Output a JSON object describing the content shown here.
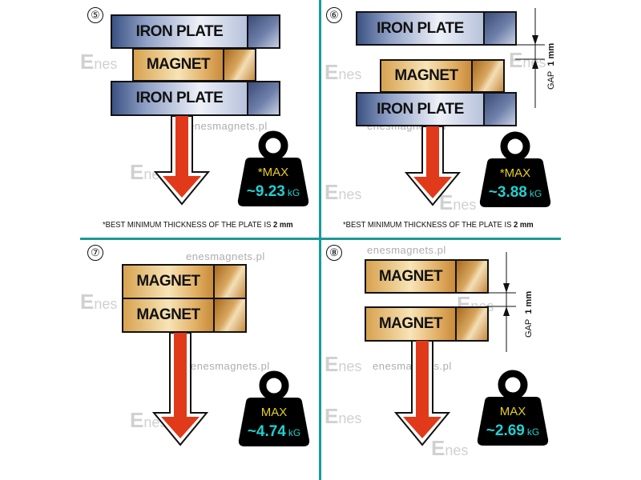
{
  "colors": {
    "divider": "#1a9a95",
    "arrow": "#e03a1a",
    "weight_body": "#000000",
    "max_label": "#e8d020",
    "value": "#20d0d0"
  },
  "watermarks": {
    "site": "enesmagnets.pl",
    "logo_letter": "E",
    "logo_rest": "nes"
  },
  "panels": [
    {
      "number": "⑤",
      "top_plate": "IRON PLATE",
      "magnet": "MAGNET",
      "bottom_plate": "IRON PLATE",
      "max_label": "*MAX",
      "value": "~9.23",
      "unit": "kG",
      "note_prefix": "*BEST MINIMUM THICKNESS OF THE PLATE IS ",
      "note_value": "2 mm",
      "icon": "weight-icon"
    },
    {
      "number": "⑥",
      "top_plate": "IRON PLATE",
      "magnet": "MAGNET",
      "bottom_plate": "IRON PLATE",
      "gap_label": "GAP",
      "gap_value": "1 mm",
      "max_label": "*MAX",
      "value": "~3.88",
      "unit": "kG",
      "note_prefix": "*BEST MINIMUM THICKNESS OF THE PLATE IS ",
      "note_value": "2 mm",
      "icon": "weight-icon"
    },
    {
      "number": "⑦",
      "magnet_top": "MAGNET",
      "magnet_bottom": "MAGNET",
      "max_label": "MAX",
      "value": "~4.74",
      "unit": "kG",
      "icon": "weight-icon"
    },
    {
      "number": "⑧",
      "magnet_top": "MAGNET",
      "magnet_bottom": "MAGNET",
      "gap_label": "GAP",
      "gap_value": "1 mm",
      "max_label": "MAX",
      "value": "~2.69",
      "unit": "kG",
      "icon": "weight-icon"
    }
  ]
}
